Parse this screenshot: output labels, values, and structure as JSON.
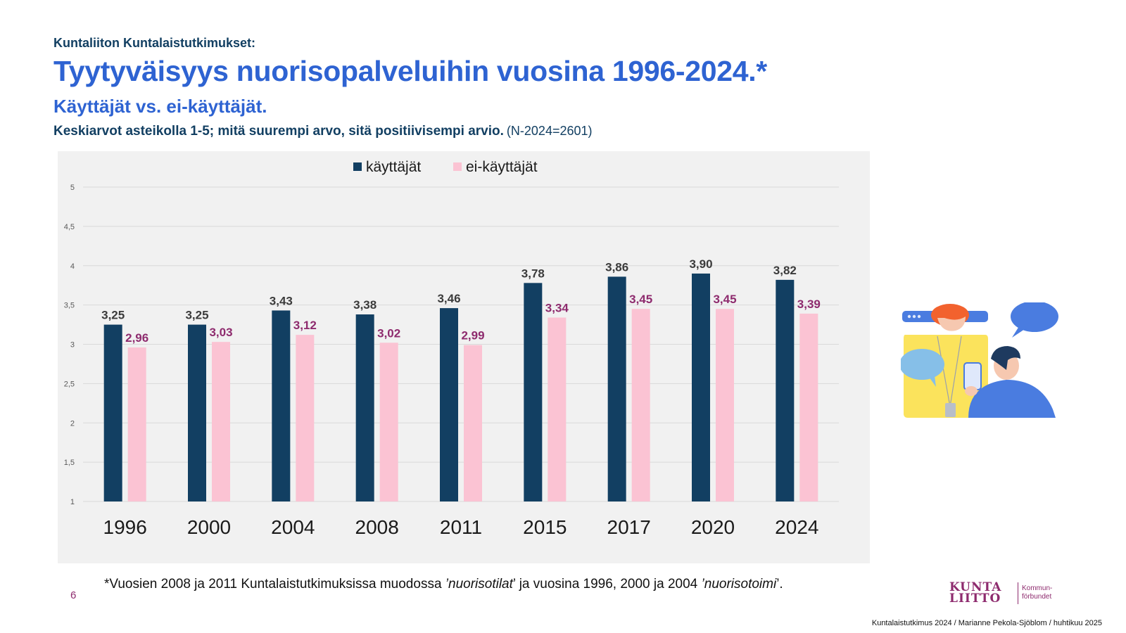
{
  "header": {
    "kicker": "Kuntaliiton Kuntalaistutkimukset:",
    "title": "Tyytyväisyys nuorisopalveluihin vuosina 1996-2024.*",
    "subtitle": "Käyttäjät vs. ei-käyttäjät.",
    "description": "Keskiarvot asteikolla 1-5; mitä suurempi arvo, sitä positiivisempi arvio.",
    "sample": "(N-2024=2601)"
  },
  "chart_data": {
    "type": "bar",
    "title": "",
    "xlabel": "",
    "ylabel": "",
    "ylim": [
      1,
      5
    ],
    "yticks": [
      "1",
      "1,5",
      "2",
      "2,5",
      "3",
      "3,5",
      "4",
      "4,5",
      "5"
    ],
    "grid": true,
    "legend_position": "top",
    "categories": [
      "1996",
      "2000",
      "2004",
      "2008",
      "2011",
      "2015",
      "2017",
      "2020",
      "2024"
    ],
    "series": [
      {
        "name": "käyttäjät",
        "color": "#123f62",
        "label_color": "#3b3b3b",
        "values": [
          3.25,
          3.25,
          3.43,
          3.38,
          3.46,
          3.78,
          3.86,
          3.9,
          3.82
        ],
        "labels": [
          "3,25",
          "3,25",
          "3,43",
          "3,38",
          "3,46",
          "3,78",
          "3,86",
          "3,90",
          "3,82"
        ]
      },
      {
        "name": "ei-käyttäjät",
        "color": "#fbc3d3",
        "label_color": "#8e2b6e",
        "values": [
          2.96,
          3.03,
          3.12,
          3.02,
          2.99,
          3.34,
          3.45,
          3.45,
          3.39
        ],
        "labels": [
          "2,96",
          "3,03",
          "3,12",
          "3,02",
          "2,99",
          "3,34",
          "3,45",
          "3,45",
          "3,39"
        ]
      }
    ]
  },
  "footnote": {
    "text_before": "*Vuosien 2008 ja 2011 Kuntalaistutkimuksissa muodossa ",
    "term1": "’nuorisotilat",
    "text_middle": "’ ja vuosina 1996, 2000 ja 2004 ",
    "term2": "’nuorisotoimi",
    "text_after": "’."
  },
  "page_number": "6",
  "logo": {
    "line1": "KUNTA",
    "line2": "LIITTO",
    "side_line1": "Kommun-",
    "side_line2": "förbundet"
  },
  "credit": "Kuntalaistutkimus 2024 / Marianne Pekola-Sjöblom / huhtikuu 2025",
  "icons": [
    "chat-illustration"
  ]
}
